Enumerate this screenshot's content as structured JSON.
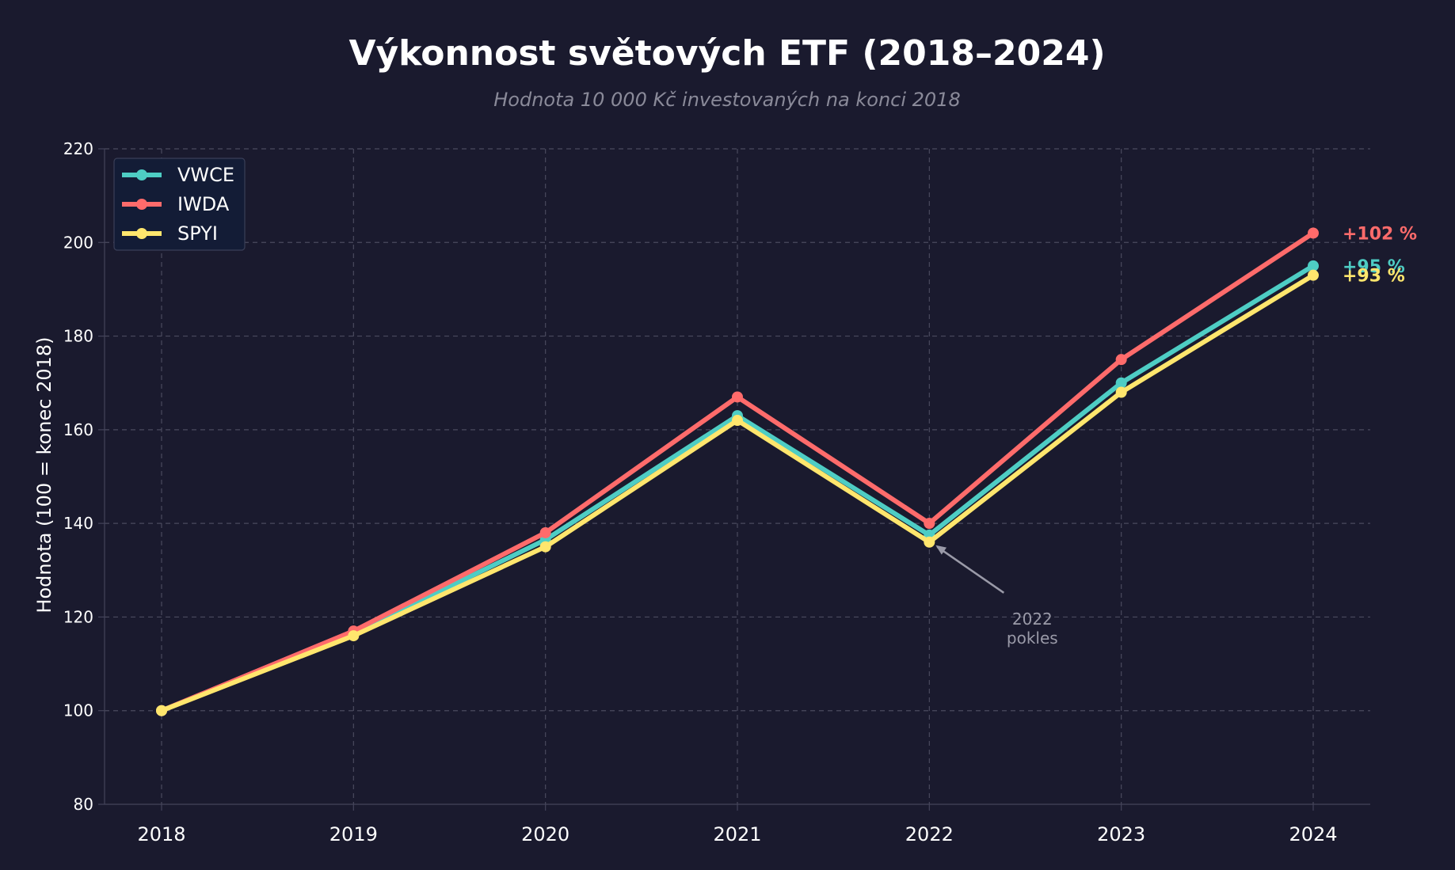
{
  "chart_data": {
    "type": "line",
    "title": "Výkonnost světových ETF (2018–2024)",
    "subtitle": "Hodnota 10 000 Kč investovaných na konci 2018",
    "xlabel": "",
    "ylabel": "Hodnota (100 = konec 2018)",
    "x": [
      "2018",
      "2019",
      "2020",
      "2021",
      "2022",
      "2023",
      "2024"
    ],
    "ylim": [
      80,
      220
    ],
    "yticks": [
      80,
      100,
      120,
      140,
      160,
      180,
      200,
      220
    ],
    "grid": true,
    "legend_position": "top-left",
    "series": [
      {
        "name": "VWCE",
        "color": "#4ecdc4",
        "values": [
          100,
          116.5,
          136.5,
          163,
          137.5,
          170,
          195
        ],
        "end_label": "+95 %"
      },
      {
        "name": "IWDA",
        "color": "#ff6b6b",
        "values": [
          100,
          117,
          138,
          167,
          140,
          175,
          202
        ],
        "end_label": "+102 %"
      },
      {
        "name": "SPYI",
        "color": "#ffe66d",
        "values": [
          100,
          116,
          135,
          162,
          136,
          168,
          193
        ],
        "end_label": "+93 %"
      }
    ],
    "annotation": {
      "text_line1": "2022",
      "text_line2": "pokles",
      "target_x": "2022",
      "target_y": 136
    }
  }
}
